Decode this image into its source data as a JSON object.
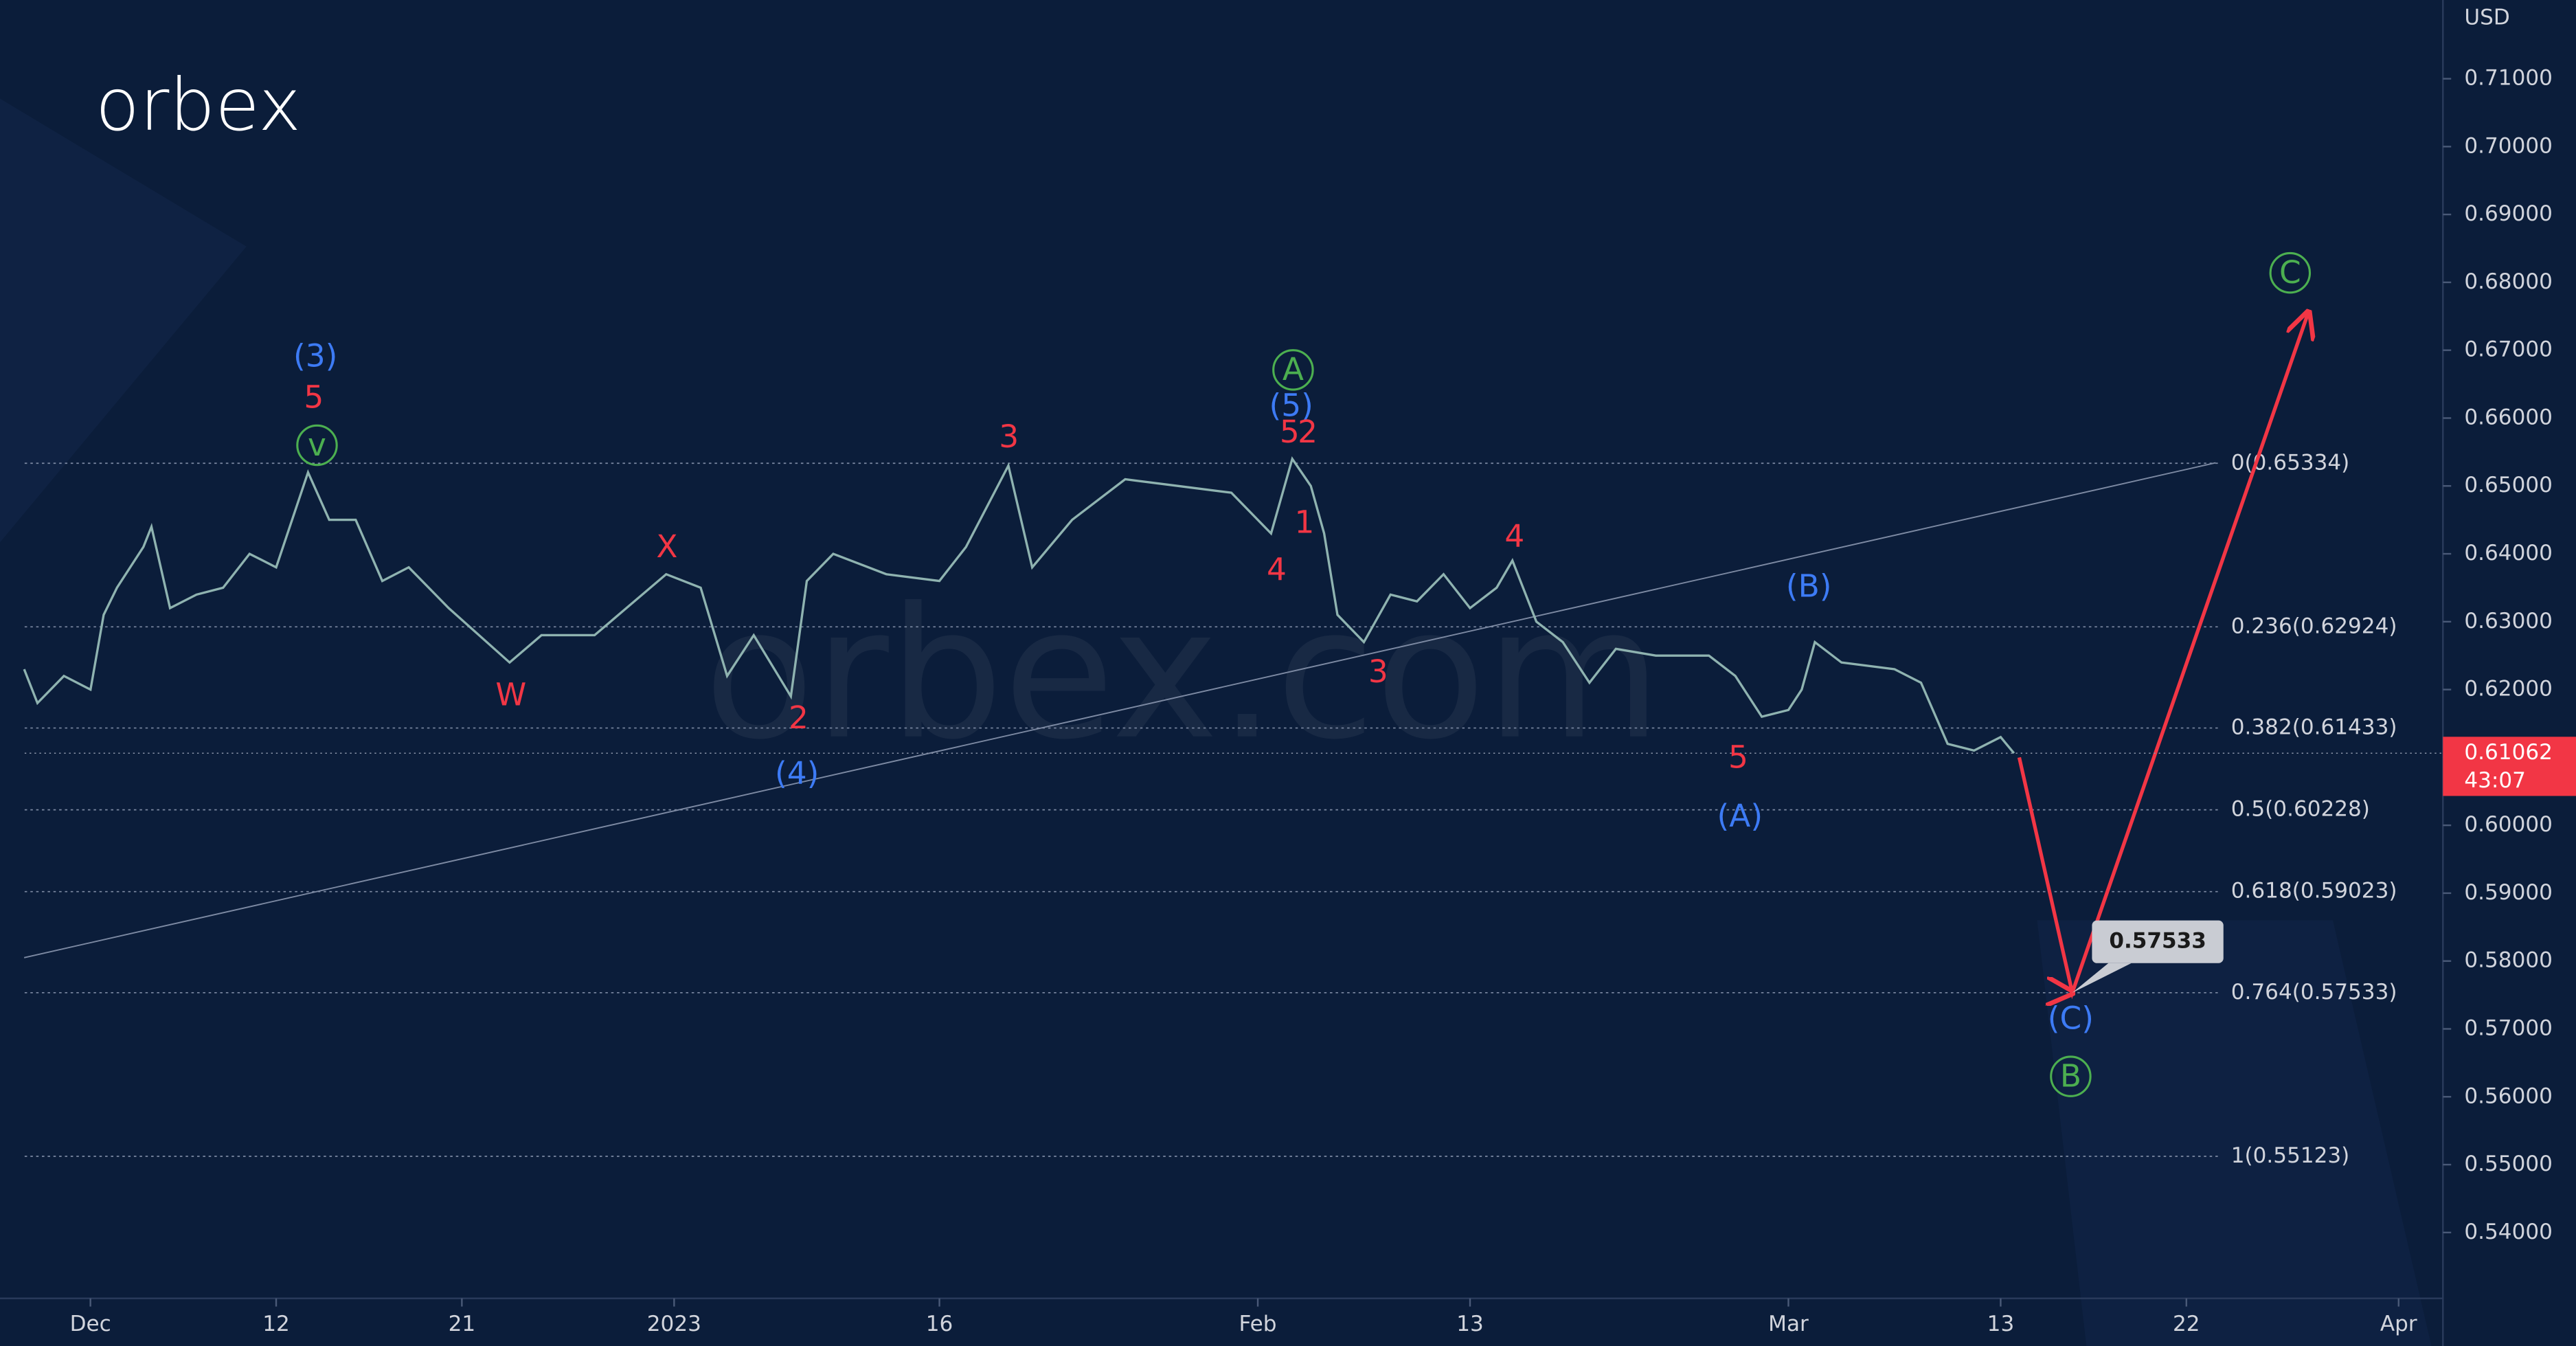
{
  "chart_data": {
    "type": "line",
    "logo": "orbex",
    "watermark": "orbex.com",
    "currency": "USD",
    "xlim": [
      -2.48,
      88.67
    ],
    "ylim": [
      0.5303,
      0.7216
    ],
    "xticks": [
      {
        "value": 0,
        "label": "Dec"
      },
      {
        "value": 7,
        "label": "12"
      },
      {
        "value": 14,
        "label": "21"
      },
      {
        "value": 22,
        "label": "2023"
      },
      {
        "value": 32,
        "label": "16"
      },
      {
        "value": 44,
        "label": "Feb"
      },
      {
        "value": 52,
        "label": "13"
      },
      {
        "value": 64,
        "label": "Mar"
      },
      {
        "value": 72,
        "label": "13"
      },
      {
        "value": 79,
        "label": "22"
      },
      {
        "value": 87,
        "label": "Apr"
      }
    ],
    "yticks": [
      {
        "value": 0.71,
        "label": "0.71000"
      },
      {
        "value": 0.7,
        "label": "0.70000"
      },
      {
        "value": 0.69,
        "label": "0.69000"
      },
      {
        "value": 0.68,
        "label": "0.68000"
      },
      {
        "value": 0.67,
        "label": "0.67000"
      },
      {
        "value": 0.66,
        "label": "0.66000"
      },
      {
        "value": 0.65,
        "label": "0.65000"
      },
      {
        "value": 0.64,
        "label": "0.64000"
      },
      {
        "value": 0.63,
        "label": "0.63000"
      },
      {
        "value": 0.62,
        "label": "0.62000"
      },
      {
        "value": 0.61,
        "label": "0.61000"
      },
      {
        "value": 0.6,
        "label": "0.60000"
      },
      {
        "value": 0.59,
        "label": "0.59000"
      },
      {
        "value": 0.58,
        "label": "0.58000"
      },
      {
        "value": 0.57,
        "label": "0.57000"
      },
      {
        "value": 0.56,
        "label": "0.56000"
      },
      {
        "value": 0.55,
        "label": "0.55000"
      },
      {
        "value": 0.54,
        "label": "0.54000"
      }
    ],
    "series": [
      {
        "color": "#8fb3b0",
        "x": [
          -2.5,
          -2,
          -1,
          0,
          0.5,
          1,
          2,
          2.3,
          3,
          4,
          5,
          6,
          7,
          8.2,
          9,
          10,
          11,
          12,
          13.5,
          15.8,
          17,
          19,
          21.7,
          23,
          24,
          25,
          26.4,
          27,
          28,
          30,
          32,
          33,
          34.6,
          35.5,
          37,
          39,
          41,
          43,
          44.5,
          45.3,
          46,
          46.5,
          47,
          48,
          49,
          50,
          51,
          52,
          53,
          53.6,
          54.5,
          55.5,
          56.5,
          57.5,
          59,
          61,
          62,
          63,
          64,
          64.5,
          65,
          66,
          68,
          69,
          70,
          71,
          72,
          72.5
        ],
        "values": [
          0.623,
          0.618,
          0.622,
          0.62,
          0.631,
          0.635,
          0.641,
          0.644,
          0.632,
          0.634,
          0.635,
          0.64,
          0.638,
          0.652,
          0.645,
          0.645,
          0.636,
          0.638,
          0.632,
          0.624,
          0.628,
          0.628,
          0.637,
          0.635,
          0.622,
          0.628,
          0.619,
          0.636,
          0.64,
          0.637,
          0.636,
          0.641,
          0.653,
          0.638,
          0.645,
          0.651,
          0.65,
          0.649,
          0.643,
          0.654,
          0.65,
          0.643,
          0.631,
          0.627,
          0.634,
          0.633,
          0.637,
          0.632,
          0.635,
          0.639,
          0.63,
          0.627,
          0.621,
          0.626,
          0.625,
          0.625,
          0.622,
          0.616,
          0.617,
          0.62,
          0.627,
          0.624,
          0.623,
          0.621,
          0.612,
          0.611,
          0.613,
          0.61062
        ]
      }
    ],
    "projection": {
      "color": "#f23645",
      "x": [
        72.7,
        74.7,
        83.6
      ],
      "values": [
        0.61,
        0.57533,
        0.6756
      ]
    },
    "trendline": {
      "x": [
        -2.5,
        80.1
      ],
      "values": [
        0.5805,
        0.6534
      ]
    },
    "fib_levels": [
      {
        "value": 0.65334,
        "label": "0(0.65334)"
      },
      {
        "value": 0.62924,
        "label": "0.236(0.62924)"
      },
      {
        "value": 0.61433,
        "label": "0.382(0.61433)"
      },
      {
        "value": 0.60228,
        "label": "0.5(0.60228)"
      },
      {
        "value": 0.59023,
        "label": "0.618(0.59023)"
      },
      {
        "value": 0.57533,
        "label": "0.764(0.57533)"
      },
      {
        "value": 0.55123,
        "label": "1(0.55123)"
      }
    ],
    "current_price": 0.61062,
    "countdown": "43:07",
    "target": 0.57533,
    "annotations": [
      {
        "text": "(3)",
        "x": 8.48,
        "y": 0.6691,
        "color": "#3d7bf5"
      },
      {
        "text": "5",
        "x": 8.42,
        "y": 0.663,
        "color": "#f23645"
      },
      {
        "text": "v",
        "x": 8.54,
        "y": 0.656,
        "color": "#4caf50",
        "circled": true
      },
      {
        "text": "W",
        "x": 15.85,
        "y": 0.6192,
        "color": "#f23645"
      },
      {
        "text": "X",
        "x": 21.73,
        "y": 0.641,
        "color": "#f23645"
      },
      {
        "text": "2",
        "x": 26.69,
        "y": 0.6158,
        "color": "#f23645"
      },
      {
        "text": "(4)",
        "x": 26.63,
        "y": 0.6076,
        "color": "#3d7bf5"
      },
      {
        "text": "3",
        "x": 34.62,
        "y": 0.6572,
        "color": "#f23645"
      },
      {
        "text": "A",
        "x": 45.33,
        "y": 0.6671,
        "color": "#4caf50",
        "circled": true
      },
      {
        "text": "(5)",
        "x": 45.26,
        "y": 0.6618,
        "color": "#3d7bf5"
      },
      {
        "text": "5",
        "x": 45.2,
        "y": 0.6579,
        "color": "#f23645"
      },
      {
        "text": "2",
        "x": 45.88,
        "y": 0.6579,
        "color": "#f23645"
      },
      {
        "text": "4",
        "x": 44.71,
        "y": 0.6376,
        "color": "#f23645"
      },
      {
        "text": "1",
        "x": 45.76,
        "y": 0.6446,
        "color": "#f23645"
      },
      {
        "text": "4",
        "x": 53.68,
        "y": 0.6425,
        "color": "#f23645"
      },
      {
        "text": "3",
        "x": 48.54,
        "y": 0.6226,
        "color": "#f23645"
      },
      {
        "text": "5",
        "x": 62.11,
        "y": 0.61,
        "color": "#f23645"
      },
      {
        "text": "(A)",
        "x": 62.17,
        "y": 0.6013,
        "color": "#3d7bf5"
      },
      {
        "text": "(B)",
        "x": 64.77,
        "y": 0.6352,
        "color": "#3d7bf5"
      },
      {
        "text": "(C)",
        "x": 74.64,
        "y": 0.5715,
        "color": "#3d7bf5"
      },
      {
        "text": "B",
        "x": 74.64,
        "y": 0.563,
        "color": "#4caf50",
        "circled": true
      },
      {
        "text": "C",
        "x": 82.91,
        "y": 0.6814,
        "color": "#4caf50",
        "circled": true
      }
    ]
  }
}
